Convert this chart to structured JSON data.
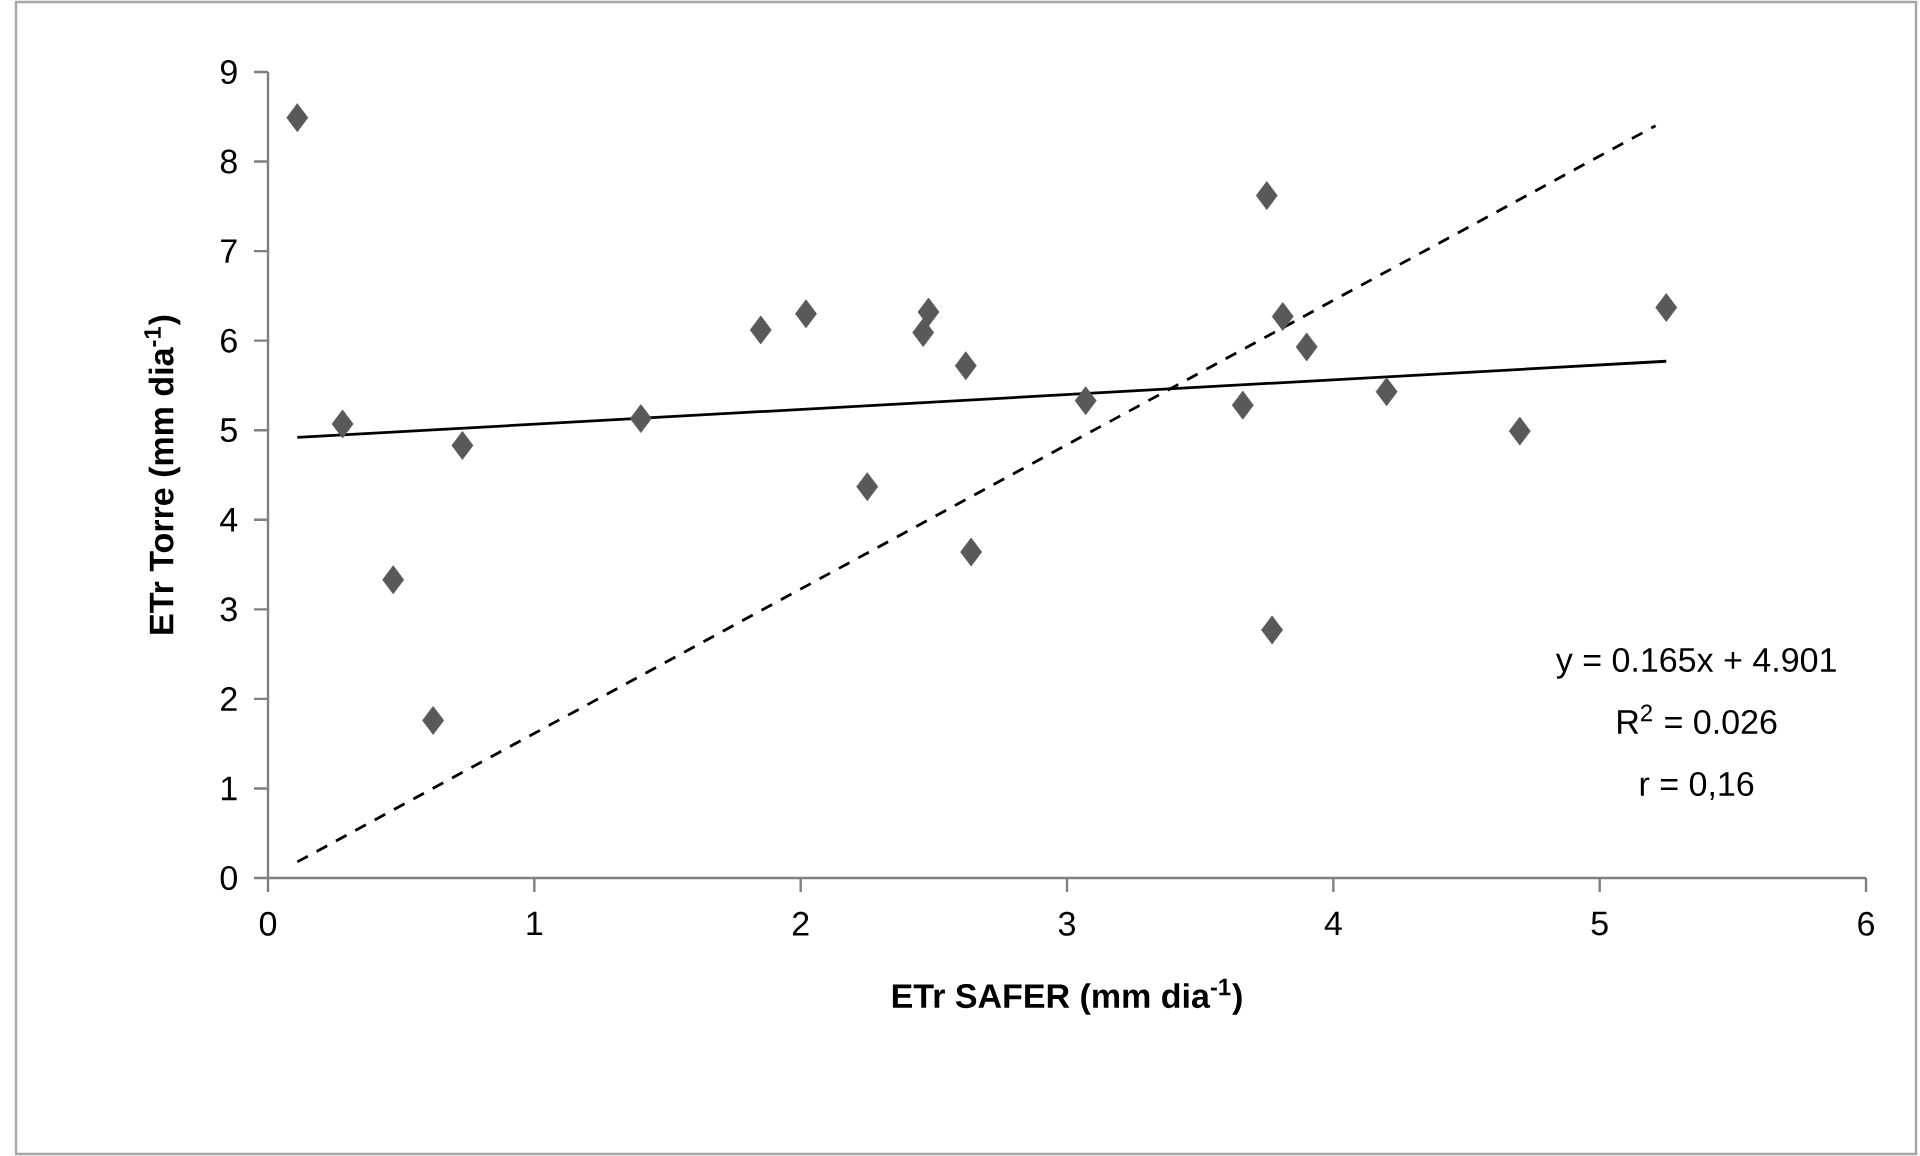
{
  "chart_data": {
    "type": "scatter",
    "xlabel": "**ETr SAFER (mm dia$^{-1}$)**",
    "ylabel": "**ETr Torre (mm dia$^{-1}$)**",
    "xlim": [
      0,
      6
    ],
    "ylim": [
      0,
      9
    ],
    "xticks": [
      0,
      1,
      2,
      3,
      4,
      5,
      6
    ],
    "yticks": [
      0,
      1,
      2,
      3,
      4,
      5,
      6,
      7,
      8,
      9
    ],
    "grid": false,
    "series": [
      {
        "marker": "diamond",
        "color": "#595959",
        "x": [
          0.11,
          0.28,
          0.47,
          0.62,
          0.73,
          1.4,
          1.85,
          2.02,
          2.25,
          2.48,
          2.46,
          2.62,
          2.64,
          3.07,
          3.75,
          3.81,
          3.9,
          3.66,
          3.77,
          4.2,
          4.7,
          5.25
        ],
        "values": [
          8.49,
          5.07,
          3.33,
          1.76,
          4.83,
          5.13,
          6.12,
          6.3,
          4.37,
          6.32,
          6.09,
          5.72,
          3.64,
          5.33,
          7.62,
          6.27,
          5.93,
          5.28,
          2.77,
          5.43,
          4.99,
          6.37
        ]
      },
      {
        "type": "line",
        "marker": "none",
        "line_style": "solid",
        "color": "#000000",
        "x": [
          0.11,
          5.25
        ],
        "values": [
          4.92,
          5.77
        ]
      },
      {
        "type": "line",
        "marker": "none",
        "line_style": "dashed",
        "color": "#000000",
        "x": [
          0.11,
          5.21
        ],
        "values": [
          0.18,
          8.4
        ]
      }
    ],
    "annotations": [
      "y = 0.165x + 4.901",
      "R$^{2}$ = 0.026",
      "r = 0,16"
    ]
  }
}
